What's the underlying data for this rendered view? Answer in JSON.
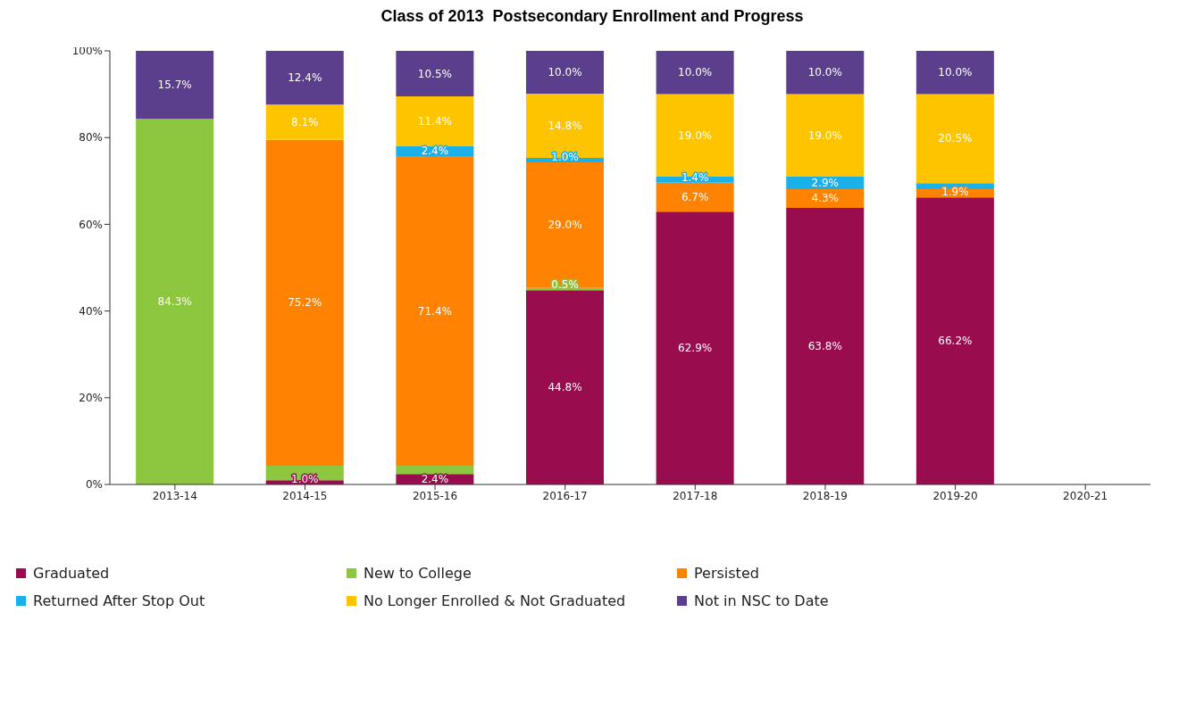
{
  "chart_data": {
    "type": "bar",
    "title": "Class of 2013  Postsecondary Enrollment and Progress",
    "categories": [
      "2013-14",
      "2014-15",
      "2015-16",
      "2016-17",
      "2017-18",
      "2018-19",
      "2019-20",
      "2020-21"
    ],
    "stacked": true,
    "ylim": [
      0,
      100
    ],
    "yticks": [
      {
        "value": 0,
        "label": "0%"
      },
      {
        "value": 20,
        "label": "20%"
      },
      {
        "value": 40,
        "label": "40%"
      },
      {
        "value": 60,
        "label": "60%"
      },
      {
        "value": 80,
        "label": "80%"
      },
      {
        "value": 100,
        "label": "100%"
      }
    ],
    "grid": false,
    "legend": "bottom",
    "series": [
      {
        "name": "Graduated",
        "color": "#990d4e",
        "values": [
          null,
          1.0,
          2.4,
          44.8,
          62.9,
          63.8,
          66.2,
          null
        ],
        "value_labels": [
          null,
          "1.0%",
          "2.4%",
          "44.8%",
          "62.9%",
          "63.8%",
          "66.2%",
          null
        ]
      },
      {
        "name": "New to College",
        "color": "#8dc63f",
        "values": [
          84.3,
          3.3,
          1.9,
          0.5,
          null,
          null,
          null,
          null
        ],
        "value_labels": [
          "84.3%",
          null,
          null,
          "0.5%",
          null,
          null,
          null,
          null
        ]
      },
      {
        "name": "Persisted",
        "color": "#ff8300",
        "values": [
          null,
          75.2,
          71.4,
          29.0,
          6.7,
          4.3,
          1.9,
          null
        ],
        "value_labels": [
          null,
          "75.2%",
          "71.4%",
          "29.0%",
          "6.7%",
          "4.3%",
          "1.9%",
          null
        ]
      },
      {
        "name": "Returned After Stop Out",
        "color": "#1ab0ea",
        "values": [
          null,
          null,
          2.4,
          1.0,
          1.4,
          2.9,
          1.4,
          null
        ],
        "value_labels": [
          null,
          null,
          "2.4%",
          "1.0%",
          "1.4%",
          "2.9%",
          null,
          null
        ]
      },
      {
        "name": "No Longer Enrolled & Not Graduated",
        "color": "#ffc400",
        "values": [
          null,
          8.1,
          11.4,
          14.8,
          19.0,
          19.0,
          20.5,
          null
        ],
        "value_labels": [
          null,
          "8.1%",
          "11.4%",
          "14.8%",
          "19.0%",
          "19.0%",
          "20.5%",
          null
        ]
      },
      {
        "name": "Not in NSC to Date",
        "color": "#5b3f8c",
        "values": [
          15.7,
          12.4,
          10.5,
          10.0,
          10.0,
          10.0,
          10.0,
          null
        ],
        "value_labels": [
          "15.7%",
          "12.4%",
          "10.5%",
          "10.0%",
          "10.0%",
          "10.0%",
          "10.0%",
          null
        ]
      }
    ]
  }
}
